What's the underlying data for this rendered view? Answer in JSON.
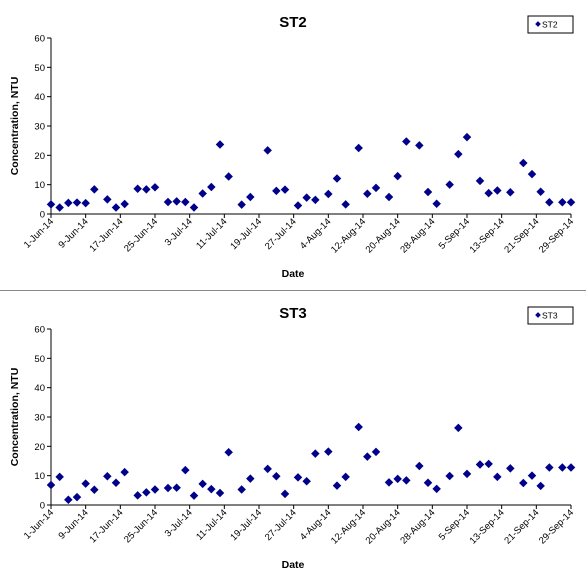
{
  "chart_data": [
    {
      "type": "scatter",
      "title": "ST2",
      "xlabel": "Date",
      "ylabel": "Concentration, NTU",
      "ylim": [
        0,
        60
      ],
      "yticks": [
        "0",
        "10",
        "20",
        "30",
        "40",
        "50",
        "60"
      ],
      "xlim": [
        "2014-06-01",
        "2014-09-29"
      ],
      "xtick_labels": [
        "1-Jun-14",
        "9-Jun-14",
        "17-Jun-14",
        "25-Jun-14",
        "3-Jul-14",
        "11-Jul-14",
        "19-Jul-14",
        "27-Jul-14",
        "4-Aug-14",
        "12-Aug-14",
        "20-Aug-14",
        "28-Aug-14",
        "5-Sep-14",
        "13-Sep-14",
        "21-Sep-14",
        "29-Sep-14"
      ],
      "xtick_dates": [
        "2014-06-01",
        "2014-06-09",
        "2014-06-17",
        "2014-06-25",
        "2014-07-03",
        "2014-07-11",
        "2014-07-19",
        "2014-07-27",
        "2014-08-04",
        "2014-08-12",
        "2014-08-20",
        "2014-08-28",
        "2014-09-05",
        "2014-09-13",
        "2014-09-21",
        "2014-09-29"
      ],
      "legend_position": "top-right",
      "grid": false,
      "marker_color": "#00008B",
      "series": [
        {
          "name": "ST2",
          "x": [
            "2014-06-01",
            "2014-06-03",
            "2014-06-05",
            "2014-06-07",
            "2014-06-09",
            "2014-06-11",
            "2014-06-14",
            "2014-06-16",
            "2014-06-18",
            "2014-06-21",
            "2014-06-23",
            "2014-06-25",
            "2014-06-28",
            "2014-06-30",
            "2014-07-02",
            "2014-07-04",
            "2014-07-06",
            "2014-07-08",
            "2014-07-10",
            "2014-07-12",
            "2014-07-15",
            "2014-07-17",
            "2014-07-21",
            "2014-07-23",
            "2014-07-25",
            "2014-07-28",
            "2014-07-30",
            "2014-08-01",
            "2014-08-04",
            "2014-08-06",
            "2014-08-08",
            "2014-08-11",
            "2014-08-13",
            "2014-08-15",
            "2014-08-18",
            "2014-08-20",
            "2014-08-22",
            "2014-08-25",
            "2014-08-27",
            "2014-08-29",
            "2014-09-01",
            "2014-09-03",
            "2014-09-05",
            "2014-09-08",
            "2014-09-10",
            "2014-09-12",
            "2014-09-15",
            "2014-09-18",
            "2014-09-20",
            "2014-09-22",
            "2014-09-24",
            "2014-09-27",
            "2014-09-29"
          ],
          "y": [
            3.3,
            2.2,
            3.8,
            3.9,
            3.7,
            8.4,
            5.0,
            2.2,
            3.4,
            8.6,
            8.4,
            9.1,
            4.1,
            4.3,
            4.1,
            2.2,
            7.0,
            9.2,
            23.7,
            12.8,
            3.2,
            5.8,
            21.7,
            7.9,
            8.3,
            2.9,
            5.6,
            4.8,
            6.8,
            12.1,
            3.3,
            22.5,
            6.9,
            8.9,
            5.8,
            12.9,
            24.7,
            23.4,
            7.5,
            3.5,
            10.0,
            20.4,
            26.2,
            11.3,
            7.1,
            8.0,
            7.4,
            17.4,
            13.6,
            7.6,
            4.0,
            4.0,
            4.0
          ]
        }
      ]
    },
    {
      "type": "scatter",
      "title": "ST3",
      "xlabel": "Date",
      "ylabel": "Concentration, NTU",
      "ylim": [
        0,
        60
      ],
      "yticks": [
        "0",
        "10",
        "20",
        "30",
        "40",
        "50",
        "60"
      ],
      "xlim": [
        "2014-06-01",
        "2014-09-29"
      ],
      "xtick_labels": [
        "1-Jun-14",
        "9-Jun-14",
        "17-Jun-14",
        "25-Jun-14",
        "3-Jul-14",
        "11-Jul-14",
        "19-Jul-14",
        "27-Jul-14",
        "4-Aug-14",
        "12-Aug-14",
        "20-Aug-14",
        "28-Aug-14",
        "5-Sep-14",
        "13-Sep-14",
        "21-Sep-14",
        "29-Sep-14"
      ],
      "xtick_dates": [
        "2014-06-01",
        "2014-06-09",
        "2014-06-17",
        "2014-06-25",
        "2014-07-03",
        "2014-07-11",
        "2014-07-19",
        "2014-07-27",
        "2014-08-04",
        "2014-08-12",
        "2014-08-20",
        "2014-08-28",
        "2014-09-05",
        "2014-09-13",
        "2014-09-21",
        "2014-09-29"
      ],
      "legend_position": "top-right",
      "grid": false,
      "marker_color": "#00008B",
      "series": [
        {
          "name": "ST3",
          "x": [
            "2014-06-01",
            "2014-06-03",
            "2014-06-05",
            "2014-06-07",
            "2014-06-09",
            "2014-06-11",
            "2014-06-14",
            "2014-06-16",
            "2014-06-18",
            "2014-06-21",
            "2014-06-23",
            "2014-06-25",
            "2014-06-28",
            "2014-06-30",
            "2014-07-02",
            "2014-07-04",
            "2014-07-06",
            "2014-07-08",
            "2014-07-10",
            "2014-07-12",
            "2014-07-15",
            "2014-07-17",
            "2014-07-21",
            "2014-07-23",
            "2014-07-25",
            "2014-07-28",
            "2014-07-30",
            "2014-08-01",
            "2014-08-04",
            "2014-08-06",
            "2014-08-08",
            "2014-08-11",
            "2014-08-13",
            "2014-08-15",
            "2014-08-18",
            "2014-08-20",
            "2014-08-22",
            "2014-08-25",
            "2014-08-27",
            "2014-08-29",
            "2014-09-01",
            "2014-09-03",
            "2014-09-05",
            "2014-09-08",
            "2014-09-10",
            "2014-09-12",
            "2014-09-15",
            "2014-09-18",
            "2014-09-20",
            "2014-09-22",
            "2014-09-24",
            "2014-09-27",
            "2014-09-29"
          ],
          "y": [
            6.8,
            9.6,
            1.8,
            2.7,
            7.3,
            5.2,
            9.8,
            7.6,
            11.2,
            3.3,
            4.3,
            5.3,
            5.8,
            5.9,
            11.9,
            3.2,
            7.2,
            5.4,
            4.1,
            18.0,
            5.3,
            9.0,
            12.3,
            9.8,
            3.8,
            9.4,
            8.1,
            17.5,
            18.2,
            6.6,
            9.6,
            26.6,
            16.5,
            18.1,
            7.7,
            8.9,
            8.4,
            13.3,
            7.6,
            5.5,
            9.9,
            26.3,
            10.6,
            13.8,
            14.0,
            9.6,
            12.5,
            7.5,
            10.0,
            6.5,
            12.8,
            12.8,
            12.8
          ]
        }
      ]
    }
  ]
}
